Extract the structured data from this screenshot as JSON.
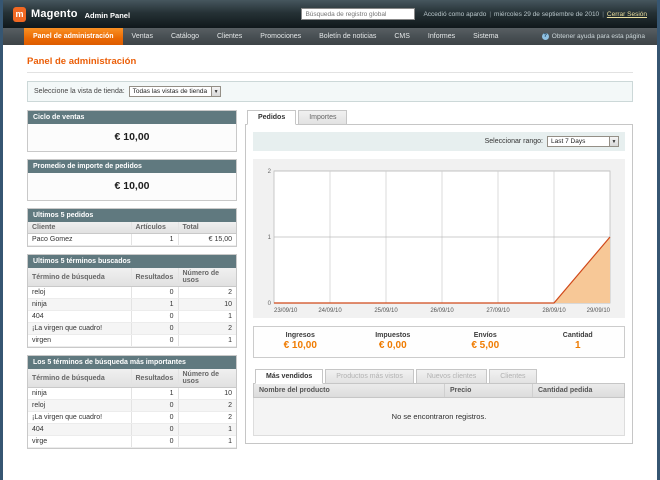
{
  "header": {
    "logo_text": "Magento",
    "logo_suffix": "Admin Panel",
    "search_placeholder": "Búsqueda de registro global",
    "logged_in_as": "Accedió como apardo",
    "date": "miércoles 29 de septiembre de 2010",
    "logout_label": "Cerrar Sesión"
  },
  "nav": {
    "items": [
      {
        "label": "Panel de administración",
        "active": true
      },
      {
        "label": "Ventas",
        "active": false
      },
      {
        "label": "Catálogo",
        "active": false
      },
      {
        "label": "Clientes",
        "active": false
      },
      {
        "label": "Promociones",
        "active": false
      },
      {
        "label": "Boletín de noticias",
        "active": false
      },
      {
        "label": "CMS",
        "active": false
      },
      {
        "label": "Informes",
        "active": false
      },
      {
        "label": "Sistema",
        "active": false
      }
    ],
    "help_label": "Obtener ayuda para esta página"
  },
  "page": {
    "title": "Panel de administración"
  },
  "store_switcher": {
    "label": "Seleccione la vista de tienda:",
    "value": "Todas las vistas de tienda"
  },
  "sidebar": {
    "sales_cycle": {
      "title": "Ciclo de ventas",
      "value": "€ 10,00"
    },
    "avg_order": {
      "title": "Promedio de importe de pedidos",
      "value": "€ 10,00"
    },
    "last_orders": {
      "title": "Ultimos 5 pedidos",
      "columns": [
        "Cliente",
        "Artículos",
        "Total"
      ],
      "rows": [
        [
          "Paco Gomez",
          "1",
          "€ 15,00"
        ]
      ]
    },
    "last_search_terms": {
      "title": "Ultimos 5 términos buscados",
      "columns": [
        "Término de búsqueda",
        "Resultados",
        "Número de usos"
      ],
      "rows": [
        [
          "reloj",
          "0",
          "2"
        ],
        [
          "ninja",
          "1",
          "10"
        ],
        [
          "404",
          "0",
          "1"
        ],
        [
          "¡La virgen que cuadro!",
          "0",
          "2"
        ],
        [
          "virgen",
          "0",
          "1"
        ]
      ]
    },
    "top_search_terms": {
      "title": "Los 5 términos de búsqueda más importantes",
      "columns": [
        "Término de búsqueda",
        "Resultados",
        "Número de usos"
      ],
      "rows": [
        [
          "ninja",
          "1",
          "10"
        ],
        [
          "reloj",
          "0",
          "2"
        ],
        [
          "¡La virgen que cuadro!",
          "0",
          "2"
        ],
        [
          "404",
          "0",
          "1"
        ],
        [
          "virge",
          "0",
          "1"
        ]
      ]
    }
  },
  "main": {
    "tabs": [
      {
        "label": "Pedidos",
        "active": true
      },
      {
        "label": "Importes",
        "active": false
      }
    ],
    "range": {
      "label": "Seleccionar rango:",
      "value": "Last 7 Days"
    },
    "totals": [
      {
        "label": "Ingresos",
        "value": "€ 10,00"
      },
      {
        "label": "Impuestos",
        "value": "€ 0,00"
      },
      {
        "label": "Envíos",
        "value": "€ 5,00"
      },
      {
        "label": "Cantidad",
        "value": "1"
      }
    ],
    "bottom_tabs": [
      {
        "label": "Más vendidos",
        "active": true
      },
      {
        "label": "Productos más vistos",
        "active": false
      },
      {
        "label": "Nuevos clientes",
        "active": false
      },
      {
        "label": "Clientes",
        "active": false
      }
    ],
    "grid": {
      "columns": [
        "Nombre del producto",
        "Precio",
        "Cantidad pedida"
      ],
      "empty_text": "No se encontraron registros."
    }
  },
  "chart_data": {
    "type": "area",
    "x": [
      "23/09/10",
      "24/09/10",
      "25/09/10",
      "26/09/10",
      "27/09/10",
      "28/09/10",
      "29/09/10"
    ],
    "series": [
      {
        "name": "Pedidos",
        "values": [
          0,
          0,
          0,
          0,
          0,
          0,
          1
        ]
      }
    ],
    "ylim": [
      0,
      2
    ],
    "yticks": [
      0,
      1,
      2
    ],
    "grid": true,
    "line_color": "#d0491a",
    "fill_color": "#f7c897"
  },
  "colors": {
    "accent_orange": "#eb5e07",
    "panel_header": "#60797f",
    "nav_active": "#ea6903",
    "totals_value": "#ef7b00"
  }
}
